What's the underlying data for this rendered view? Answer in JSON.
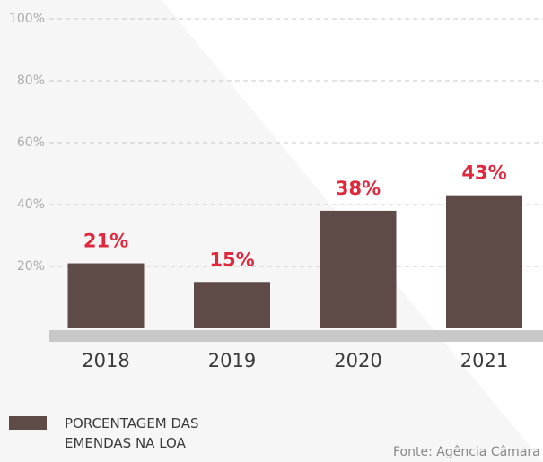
{
  "chart_data": {
    "type": "bar",
    "categories": [
      "2018",
      "2019",
      "2020",
      "2021"
    ],
    "series": [
      {
        "name": "PORCENTAGEM DAS EMENDAS NA LOA",
        "color": "#5e4a47",
        "values": [
          21,
          15,
          38,
          43
        ],
        "value_labels": [
          "21%",
          "15%",
          "38%",
          "43%"
        ]
      }
    ],
    "ylim": [
      0,
      100
    ],
    "yticks": [
      {
        "value": 20,
        "label": "20%"
      },
      {
        "value": 40,
        "label": "40%"
      },
      {
        "value": 60,
        "label": "60%"
      },
      {
        "value": 80,
        "label": "80%"
      },
      {
        "value": 100,
        "label": "100%"
      }
    ],
    "grid": true,
    "source": "Fonte: Agência Câmara"
  }
}
